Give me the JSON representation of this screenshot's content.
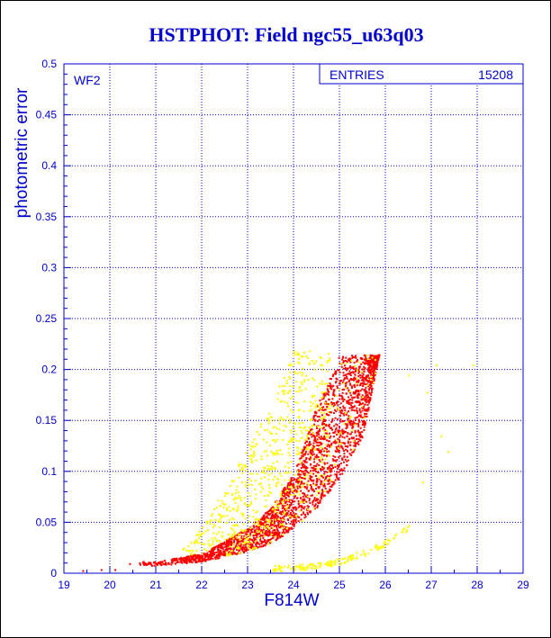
{
  "chart_data": {
    "type": "scatter",
    "title": "HSTPHOT: Field ngc55_u63q03",
    "xlabel": "F814W",
    "ylabel": "photometric error",
    "xlim": [
      19,
      29
    ],
    "ylim": [
      0,
      0.5
    ],
    "xticks": [
      19,
      20,
      21,
      22,
      23,
      24,
      25,
      26,
      27,
      28,
      29
    ],
    "yticks": [
      0,
      0.05,
      0.1,
      0.15,
      0.2,
      0.25,
      0.3,
      0.35,
      0.4,
      0.45,
      0.5
    ],
    "grid": true,
    "chip_label": "WF2",
    "stats_box": {
      "label": "ENTRIES",
      "value": "15208"
    },
    "colors": {
      "axes": "#0000cc",
      "title": "#0000cc",
      "series_main": "#ff0000",
      "series_secondary": "#ffff00"
    },
    "series": [
      {
        "color": "#ff0000",
        "relation": "error ≈ 0.0065 + 0.0155·exp(0.79·(mag − 22.5)), capped at 0.215",
        "envelope_lower": [
          [
            21,
            0.008
          ],
          [
            22,
            0.012
          ],
          [
            23,
            0.022
          ],
          [
            23.5,
            0.03
          ],
          [
            24,
            0.045
          ],
          [
            24.5,
            0.065
          ],
          [
            25,
            0.095
          ],
          [
            25.5,
            0.135
          ],
          [
            25.85,
            0.215
          ]
        ],
        "envelope_upper": [
          [
            21,
            0.012
          ],
          [
            22,
            0.02
          ],
          [
            23,
            0.045
          ],
          [
            23.5,
            0.065
          ],
          [
            24,
            0.1
          ],
          [
            24.5,
            0.165
          ],
          [
            25,
            0.215
          ],
          [
            25.9,
            0.215
          ]
        ],
        "mag_range": [
          20.3,
          25.9
        ]
      },
      {
        "color": "#ffff00",
        "description": "scattered points above the main locus plus a faint low-error sequence",
        "upper_cloud": [
          [
            21.5,
            0.02
          ],
          [
            22,
            0.03
          ],
          [
            22.5,
            0.06
          ],
          [
            23,
            0.09
          ],
          [
            23.5,
            0.12
          ],
          [
            24,
            0.16
          ],
          [
            24.5,
            0.2
          ]
        ],
        "lower_sequence": [
          [
            23.5,
            0.005
          ],
          [
            24,
            0.006
          ],
          [
            24.5,
            0.008
          ],
          [
            25,
            0.012
          ],
          [
            25.5,
            0.02
          ],
          [
            26,
            0.03
          ],
          [
            26.5,
            0.045
          ]
        ],
        "mag_range": [
          21.5,
          28
        ]
      }
    ]
  }
}
